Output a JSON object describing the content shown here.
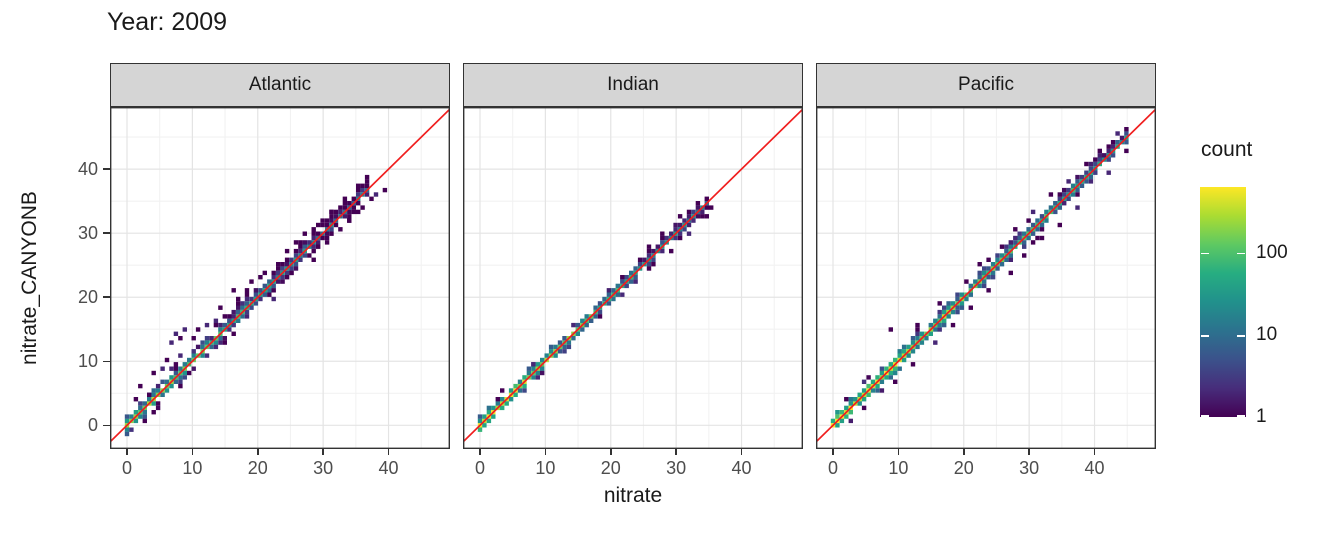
{
  "chart_data": {
    "type": "heatmap",
    "subtype": "binned-2d-scatter, faceted",
    "title": "Year: 2009",
    "xlabel": "nitrate",
    "ylabel": "nitrate_CANYONB",
    "x_ticks": [
      0,
      10,
      20,
      30,
      40
    ],
    "y_ticks": [
      0,
      10,
      20,
      30,
      40
    ],
    "x_range": [
      -2.6,
      49.4
    ],
    "y_range": [
      -3.7,
      49.7
    ],
    "grid": {
      "major_color": "#e4e4e4",
      "minor_color": "#f2f2f2",
      "minor_ticks": [
        5,
        15,
        25,
        35,
        45
      ],
      "panel_background": "#ffffff",
      "panel_border": "#333333"
    },
    "strip": {
      "fill": "#d5d5d5",
      "border": "#333333"
    },
    "identity_line": {
      "equation": "y = x",
      "color": "#f01e1e"
    },
    "legend": {
      "title": "count",
      "scale": "log10",
      "ticks": [
        100,
        10,
        1
      ],
      "max_count": 630,
      "colormap": "viridis",
      "colors": [
        "#440154",
        "#472d7b",
        "#3b528b",
        "#2c728e",
        "#21918c",
        "#27ad81",
        "#5ec962",
        "#aadc32",
        "#fde725"
      ]
    },
    "facets": [
      {
        "label": "Atlantic",
        "diagonal": {
          "min": 0,
          "max": 37.2,
          "log_count_start": 2.4,
          "log_count_end": 1.0,
          "band_p": [
            0.95,
            0.55,
            0.2
          ],
          "seed": 7
        },
        "outliers": [
          [
            2.8,
            1.0
          ],
          [
            4.1,
            2.1
          ],
          [
            5.0,
            3.3
          ],
          [
            1.6,
            4.1
          ],
          [
            2.3,
            6.0
          ],
          [
            3.1,
            4.7
          ],
          [
            4.3,
            8.2
          ],
          [
            5.3,
            9.0
          ],
          [
            5.9,
            10.3
          ],
          [
            6.5,
            12.9
          ],
          [
            7.0,
            9.0
          ],
          [
            7.5,
            14.3
          ],
          [
            8.1,
            11.2
          ],
          [
            8.2,
            13.6
          ],
          [
            9.0,
            15.0
          ],
          [
            9.7,
            8.2
          ],
          [
            10.3,
            13.3
          ],
          [
            11.0,
            14.7
          ],
          [
            12.1,
            15.4
          ],
          [
            12.7,
            13.4
          ],
          [
            13.5,
            16.3
          ],
          [
            14.3,
            18.4
          ],
          [
            15.1,
            13.1
          ],
          [
            16.0,
            21.0
          ],
          [
            17.3,
            19.7
          ],
          [
            18.1,
            21.3
          ],
          [
            19.0,
            22.4
          ],
          [
            20.5,
            22.9
          ],
          [
            21.3,
            24.1
          ],
          [
            22.1,
            19.9
          ],
          [
            23.1,
            25.3
          ],
          [
            24.7,
            26.9
          ],
          [
            25.3,
            23.5
          ],
          [
            26.1,
            28.5
          ],
          [
            27.5,
            29.7
          ],
          [
            28.3,
            26.1
          ],
          [
            29.1,
            31.5
          ],
          [
            30.3,
            28.7
          ],
          [
            31.1,
            33.3
          ],
          [
            32.5,
            30.5
          ],
          [
            33.1,
            35.1
          ],
          [
            34.3,
            32.0
          ],
          [
            35.1,
            36.5
          ],
          [
            36.3,
            34.1
          ],
          [
            37.1,
            35.3
          ],
          [
            38.2,
            35.9
          ],
          [
            39.2,
            36.7
          ]
        ]
      },
      {
        "label": "Indian",
        "diagonal": {
          "min": 0,
          "max": 35.2,
          "log_count_start": 2.75,
          "log_count_end": 1.15,
          "band_p": [
            0.9,
            0.18,
            0.02
          ],
          "seed": 13
        },
        "outliers": [
          [
            2.7,
            4.4
          ],
          [
            3.5,
            5.2
          ],
          [
            7.9,
            9.4
          ],
          [
            8.7,
            7.3
          ],
          [
            14.3,
            15.9
          ],
          [
            18.1,
            16.7
          ],
          [
            21.5,
            23.1
          ],
          [
            24.1,
            22.3
          ],
          [
            25.9,
            27.7
          ],
          [
            26.7,
            24.9
          ],
          [
            28.1,
            30.1
          ],
          [
            29.3,
            27.5
          ],
          [
            30.7,
            32.5
          ],
          [
            31.9,
            29.9
          ],
          [
            33.1,
            34.7
          ],
          [
            34.3,
            32.5
          ],
          [
            35.3,
            33.7
          ]
        ]
      },
      {
        "label": "Pacific",
        "diagonal": {
          "min": 0,
          "max": 45.4,
          "log_count_start": 2.8,
          "log_count_end": 1.45,
          "band_p": [
            0.92,
            0.38,
            0.08
          ],
          "seed": 21
        },
        "outliers": [
          [
            2.1,
            4.1
          ],
          [
            4.7,
            2.7
          ],
          [
            8.9,
            15.1
          ],
          [
            9.7,
            7.1
          ],
          [
            12.3,
            9.7
          ],
          [
            13.1,
            15.9
          ],
          [
            15.5,
            12.9
          ],
          [
            16.3,
            18.9
          ],
          [
            18.7,
            15.9
          ],
          [
            20.1,
            22.7
          ],
          [
            21.3,
            18.7
          ],
          [
            22.7,
            25.1
          ],
          [
            24.1,
            21.3
          ],
          [
            25.5,
            27.9
          ],
          [
            26.9,
            23.9
          ],
          [
            28.1,
            30.7
          ],
          [
            29.5,
            26.7
          ],
          [
            30.9,
            33.1
          ],
          [
            32.1,
            29.3
          ],
          [
            33.5,
            36.1
          ],
          [
            34.7,
            31.1
          ],
          [
            36.1,
            38.3
          ],
          [
            37.3,
            34.3
          ],
          [
            38.5,
            41.1
          ],
          [
            39.5,
            37.9
          ],
          [
            40.7,
            43.1
          ],
          [
            42.1,
            39.7
          ],
          [
            43.3,
            45.3
          ],
          [
            44.7,
            42.9
          ]
        ]
      }
    ]
  }
}
